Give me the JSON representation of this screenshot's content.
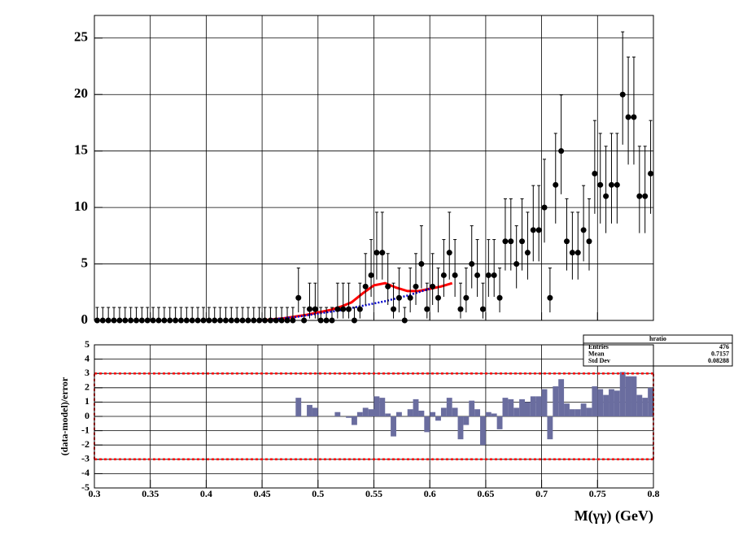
{
  "chart_data": [
    {
      "type": "errorbar",
      "x": [
        0.3025,
        0.3075,
        0.3125,
        0.3175,
        0.3225,
        0.3275,
        0.3325,
        0.3375,
        0.3425,
        0.3475,
        0.3525,
        0.3575,
        0.3625,
        0.3675,
        0.3725,
        0.3775,
        0.3825,
        0.3875,
        0.3925,
        0.3975,
        0.4025,
        0.4075,
        0.4125,
        0.4175,
        0.4225,
        0.4275,
        0.4325,
        0.4375,
        0.4425,
        0.4475,
        0.4525,
        0.4575,
        0.4625,
        0.4675,
        0.4725,
        0.4775,
        0.4825,
        0.4875,
        0.4925,
        0.4975,
        0.5025,
        0.5075,
        0.5125,
        0.5175,
        0.5225,
        0.5275,
        0.5325,
        0.5375,
        0.5425,
        0.5475,
        0.5525,
        0.5575,
        0.5625,
        0.5675,
        0.5725,
        0.5775,
        0.5825,
        0.5875,
        0.5925,
        0.5975,
        0.6025,
        0.6075,
        0.6125,
        0.6175,
        0.6225,
        0.6275,
        0.6325,
        0.6375,
        0.6425,
        0.6475,
        0.6525,
        0.6575,
        0.6625,
        0.6675,
        0.6725,
        0.6775,
        0.6825,
        0.6875,
        0.6925,
        0.6975,
        0.7025,
        0.7075,
        0.7125,
        0.7175,
        0.7225,
        0.7275,
        0.7325,
        0.7375,
        0.7425,
        0.7475,
        0.7525,
        0.7575,
        0.7625,
        0.7675,
        0.7725,
        0.7775,
        0.7825,
        0.7875,
        0.7925,
        0.7975
      ],
      "values": [
        0,
        0,
        0,
        0,
        0,
        0,
        0,
        0,
        0,
        0,
        0,
        0,
        0,
        0,
        0,
        0,
        0,
        0,
        0,
        0,
        0,
        0,
        0,
        0,
        0,
        0,
        0,
        0,
        0,
        0,
        0,
        0,
        0,
        0,
        0,
        0,
        2,
        0,
        1,
        1,
        0,
        0,
        0,
        1,
        1,
        1,
        0,
        1,
        3,
        4,
        6,
        6,
        3,
        1,
        2,
        0,
        2,
        3,
        5,
        1,
        3,
        2,
        4,
        6,
        4,
        1,
        2,
        5,
        4,
        1,
        4,
        4,
        2,
        7,
        7,
        5,
        7,
        6,
        8,
        8,
        10,
        2,
        12,
        15,
        7,
        6,
        6,
        8,
        7,
        13,
        12,
        11,
        12,
        12,
        20,
        18,
        18,
        11,
        11,
        13
      ],
      "yerr_low": [
        0,
        0,
        0,
        0,
        0,
        0,
        0,
        0,
        0,
        0,
        0,
        0,
        0,
        0,
        0,
        0,
        0,
        0,
        0,
        0,
        0,
        0,
        0,
        0,
        0,
        0,
        0,
        0,
        0,
        0,
        0,
        0,
        0,
        0,
        0,
        0,
        1.29,
        0,
        0.83,
        0.83,
        0,
        0,
        0,
        0.83,
        0.83,
        0.83,
        0,
        0.83,
        1.63,
        1.91,
        2.38,
        2.38,
        1.63,
        0.83,
        1.29,
        0,
        1.29,
        1.63,
        2.16,
        0.83,
        1.63,
        1.29,
        1.91,
        2.38,
        1.91,
        0.83,
        1.29,
        2.16,
        1.91,
        0.83,
        1.91,
        1.91,
        1.29,
        2.58,
        2.58,
        2.16,
        2.58,
        2.38,
        2.77,
        2.77,
        3.11,
        1.29,
        3.42,
        3.83,
        2.58,
        2.38,
        2.38,
        2.77,
        2.58,
        3.56,
        3.42,
        3.27,
        3.42,
        3.42,
        4.44,
        4.2,
        4.2,
        3.27,
        3.27,
        3.56
      ],
      "yerr_high": [
        1.15,
        1.15,
        1.15,
        1.15,
        1.15,
        1.15,
        1.15,
        1.15,
        1.15,
        1.15,
        1.15,
        1.15,
        1.15,
        1.15,
        1.15,
        1.15,
        1.15,
        1.15,
        1.15,
        1.15,
        1.15,
        1.15,
        1.15,
        1.15,
        1.15,
        1.15,
        1.15,
        1.15,
        1.15,
        1.15,
        1.15,
        1.15,
        1.15,
        1.15,
        1.15,
        1.15,
        2.64,
        1.15,
        2.3,
        2.3,
        1.15,
        1.15,
        1.15,
        2.3,
        2.3,
        2.3,
        1.15,
        2.3,
        2.92,
        3.16,
        3.58,
        3.58,
        2.92,
        2.3,
        2.64,
        1.15,
        2.64,
        2.92,
        3.38,
        2.3,
        2.92,
        2.64,
        3.16,
        3.58,
        3.16,
        2.3,
        2.64,
        3.38,
        3.16,
        2.3,
        3.16,
        3.16,
        2.64,
        3.77,
        3.77,
        3.38,
        3.77,
        3.58,
        3.94,
        3.94,
        4.27,
        2.64,
        4.56,
        4.96,
        3.77,
        3.58,
        3.58,
        3.94,
        3.77,
        4.7,
        4.56,
        4.42,
        4.56,
        4.56,
        5.55,
        5.32,
        5.32,
        4.42,
        4.42,
        4.7
      ],
      "color": "#000000",
      "curves": [
        {
          "color": "#ff0000",
          "style": "solid",
          "x": [
            0.45,
            0.47,
            0.49,
            0.5,
            0.51,
            0.52,
            0.53,
            0.54,
            0.55,
            0.56,
            0.57,
            0.58,
            0.59,
            0.6,
            0.61,
            0.62
          ],
          "values": [
            0,
            0.2,
            0.5,
            0.7,
            0.9,
            1.2,
            1.6,
            2.4,
            3.1,
            3.3,
            2.9,
            2.6,
            2.6,
            2.8,
            3.0,
            3.3
          ]
        },
        {
          "color": "#0000cc",
          "style": "dotted",
          "x": [
            0.45,
            0.48,
            0.5,
            0.52,
            0.54,
            0.56,
            0.58,
            0.6
          ],
          "values": [
            0,
            0.3,
            0.6,
            0.9,
            1.3,
            1.7,
            2.2,
            2.8
          ]
        }
      ],
      "xlim": [
        0.3,
        0.8
      ],
      "xticks": [
        0.3,
        0.35,
        0.4,
        0.45,
        0.5,
        0.55,
        0.6,
        0.65,
        0.7,
        0.75,
        0.8
      ],
      "show_xtick_labels": false,
      "ylim": [
        0,
        27
      ],
      "yticks": [
        0,
        5,
        10,
        15,
        20,
        25
      ],
      "grid": true
    },
    {
      "type": "histogram",
      "bins": [
        0.3,
        0.305,
        0.31,
        0.315,
        0.32,
        0.325,
        0.33,
        0.335,
        0.34,
        0.345,
        0.35,
        0.355,
        0.36,
        0.365,
        0.37,
        0.375,
        0.38,
        0.385,
        0.39,
        0.395,
        0.4,
        0.405,
        0.41,
        0.415,
        0.42,
        0.425,
        0.43,
        0.435,
        0.44,
        0.445,
        0.45,
        0.455,
        0.46,
        0.465,
        0.47,
        0.475,
        0.48,
        0.485,
        0.49,
        0.495,
        0.5,
        0.505,
        0.51,
        0.515,
        0.52,
        0.525,
        0.53,
        0.535,
        0.54,
        0.545,
        0.55,
        0.555,
        0.56,
        0.565,
        0.57,
        0.575,
        0.58,
        0.585,
        0.59,
        0.595,
        0.6,
        0.605,
        0.61,
        0.615,
        0.62,
        0.625,
        0.63,
        0.635,
        0.64,
        0.645,
        0.65,
        0.655,
        0.66,
        0.665,
        0.67,
        0.675,
        0.68,
        0.685,
        0.69,
        0.695,
        0.7,
        0.705,
        0.71,
        0.715,
        0.72,
        0.725,
        0.73,
        0.735,
        0.74,
        0.745,
        0.75,
        0.755,
        0.76,
        0.765,
        0.77,
        0.775,
        0.78,
        0.785,
        0.79,
        0.795,
        0.8
      ],
      "values": [
        0,
        0,
        0,
        0,
        0,
        0,
        0,
        0,
        0,
        0,
        0,
        0,
        0,
        0,
        0,
        0,
        0,
        0,
        0,
        0,
        0,
        0,
        0,
        0,
        0,
        0,
        0,
        0,
        0,
        0,
        0,
        0,
        0,
        0,
        0,
        0,
        1.3,
        0,
        0.8,
        0.6,
        0,
        0,
        0,
        0.3,
        0,
        -0.1,
        -0.6,
        0.3,
        0.6,
        0.5,
        1.4,
        1.3,
        0.2,
        -1.4,
        0.3,
        0,
        0.5,
        1.2,
        0.4,
        -1.1,
        0.3,
        -0.3,
        0.6,
        1.3,
        0.6,
        -1.6,
        -0.6,
        1.1,
        0.5,
        -2.0,
        0.3,
        0.2,
        -0.9,
        1.3,
        1.2,
        0.6,
        1.2,
        1.0,
        1.4,
        1.4,
        1.9,
        -1.6,
        2.1,
        2.6,
        0.9,
        0.5,
        0.5,
        0.9,
        0.6,
        2.1,
        1.9,
        1.5,
        1.9,
        1.8,
        3.1,
        2.8,
        2.8,
        1.5,
        1.3,
        2.0
      ],
      "color": "#6a6d9f",
      "xlim": [
        0.3,
        0.8
      ],
      "xticks": [
        0.3,
        0.35,
        0.4,
        0.45,
        0.5,
        0.55,
        0.6,
        0.65,
        0.7,
        0.75,
        0.8
      ],
      "show_xtick_labels": true,
      "ylim": [
        -5,
        5
      ],
      "yticks": [
        -5,
        -4,
        -3,
        -2,
        -1,
        0,
        1,
        2,
        3,
        4,
        5
      ],
      "grid": true,
      "xlabel": "M(γγ) (GeV)",
      "ylabel": "(data-model)/error",
      "ref_lines": [
        -3,
        3
      ],
      "ref_color": "#ff0000",
      "stats": {
        "title": "hratio",
        "rows": [
          {
            "label": "Entries",
            "value": 476
          },
          {
            "label": "Mean",
            "value": 0.7157
          },
          {
            "label": "Std Dev",
            "value": 0.08288
          }
        ]
      }
    }
  ]
}
